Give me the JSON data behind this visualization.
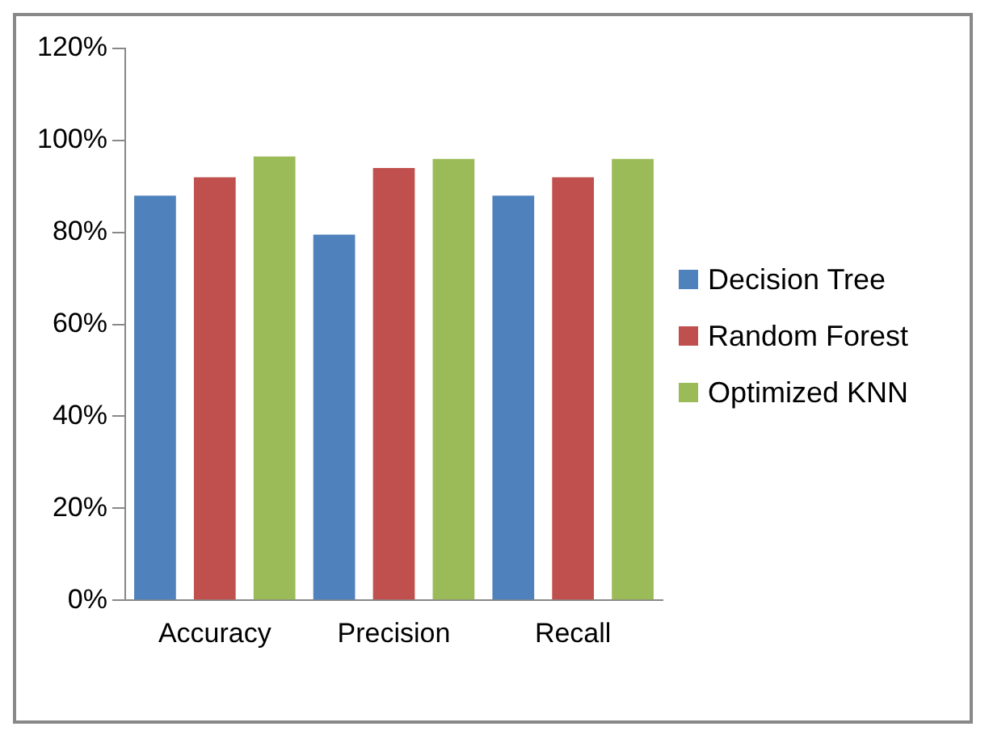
{
  "chart_data": {
    "type": "bar",
    "categories": [
      "Accuracy",
      "Precision",
      "Recall"
    ],
    "series": [
      {
        "name": "Decision Tree",
        "color": "#4f81bd",
        "values": [
          88,
          79.5,
          88
        ]
      },
      {
        "name": "Random Forest",
        "color": "#c0504d",
        "values": [
          92,
          94,
          92
        ]
      },
      {
        "name": "Optimized KNN",
        "color": "#9bbb59",
        "values": [
          96.5,
          96,
          96
        ]
      }
    ],
    "ylim": [
      0,
      120
    ],
    "yticks": [
      {
        "value": 0,
        "label": "0%"
      },
      {
        "value": 20,
        "label": "20%"
      },
      {
        "value": 40,
        "label": "40%"
      },
      {
        "value": 60,
        "label": "60%"
      },
      {
        "value": 80,
        "label": "80%"
      },
      {
        "value": 100,
        "label": "100%"
      },
      {
        "value": 120,
        "label": "120%"
      }
    ],
    "grid": false,
    "legend": "right"
  }
}
